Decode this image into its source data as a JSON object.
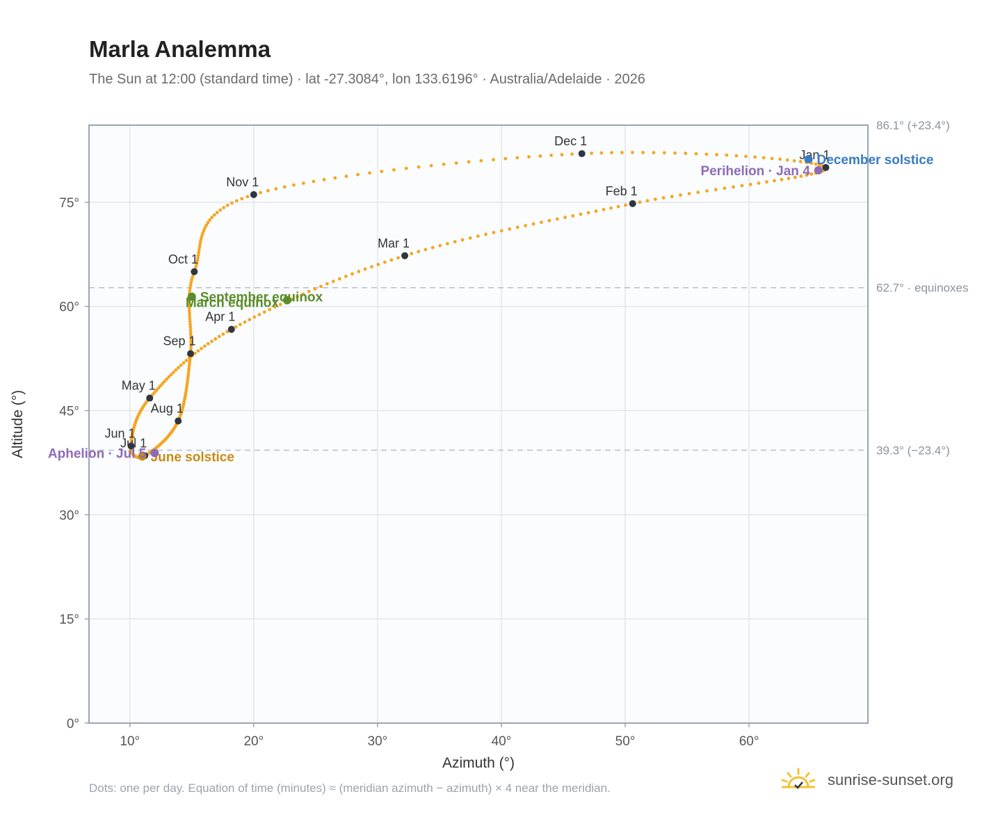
{
  "title": "Marla Analemma",
  "subtitle": "The Sun at 12:00 (standard time) · lat -27.3084°, lon 133.6196° · Australia/Adelaide · 2026",
  "footnote": "Dots: one per day. Equation of time (minutes) ≈ (meridian azimuth − azimuth) × 4 near the meridian.",
  "brand": "sunrise-sunset.org",
  "colors": {
    "curve": "#f4a623",
    "month_marker": "#2f3640",
    "equinox": "#5b8c2a",
    "june_solstice": "#c98a13",
    "december_solstice": "#3b7bbf",
    "apsis": "#8e6bb5",
    "plot_bg": "#fafcfe",
    "grid": "#e3e6ea",
    "frame": "#9aa5b1",
    "ref_line": "#b8bec6",
    "brand_icon": "#f2c230"
  },
  "chart_data": {
    "type": "scatter",
    "xlabel": "Azimuth (°)",
    "ylabel": "Altitude (°)",
    "xlim": [
      6.7,
      69.6
    ],
    "ylim": [
      0,
      86.1
    ],
    "xticks": [
      10,
      20,
      30,
      40,
      50,
      60
    ],
    "yticks": [
      0,
      15,
      30,
      45,
      60,
      75
    ],
    "grid": true,
    "reference_lines": [
      {
        "y": 86.1,
        "label": "86.1° (+23.4°)"
      },
      {
        "y": 62.7,
        "label": "62.7° · equinoxes"
      },
      {
        "y": 39.3,
        "label": "39.3° (−23.4°)"
      }
    ],
    "month_markers": [
      {
        "label": "Jan 1",
        "az": 66.2,
        "alt": 80.0
      },
      {
        "label": "Feb 1",
        "az": 50.6,
        "alt": 74.8
      },
      {
        "label": "Mar 1",
        "az": 32.2,
        "alt": 67.3
      },
      {
        "label": "Apr 1",
        "az": 18.2,
        "alt": 56.7
      },
      {
        "label": "May 1",
        "az": 11.6,
        "alt": 46.8
      },
      {
        "label": "Jun 1",
        "az": 10.1,
        "alt": 39.9
      },
      {
        "label": "Jul 1",
        "az": 11.2,
        "alt": 38.5
      },
      {
        "label": "Aug 1",
        "az": 13.9,
        "alt": 43.5
      },
      {
        "label": "Sep 1",
        "az": 14.9,
        "alt": 53.2
      },
      {
        "label": "Oct 1",
        "az": 15.2,
        "alt": 65.0
      },
      {
        "label": "Nov 1",
        "az": 20.0,
        "alt": 76.1
      },
      {
        "label": "Dec 1",
        "az": 46.5,
        "alt": 82.0
      }
    ],
    "events": [
      {
        "label": "March equinox",
        "az": 22.7,
        "alt": 60.9,
        "kind": "equinox"
      },
      {
        "label": "September equinox",
        "az": 15.0,
        "alt": 61.4,
        "kind": "equinox"
      },
      {
        "label": "June solstice",
        "az": 11.0,
        "alt": 38.4,
        "kind": "june_solstice"
      },
      {
        "label": "December solstice",
        "az": 64.8,
        "alt": 81.2,
        "kind": "december_solstice"
      },
      {
        "label": "Perihelion · Jan 4",
        "az": 65.6,
        "alt": 79.6,
        "kind": "apsis"
      },
      {
        "label": "Aphelion · Jul 5",
        "az": 12.0,
        "alt": 38.9,
        "kind": "apsis"
      }
    ]
  }
}
